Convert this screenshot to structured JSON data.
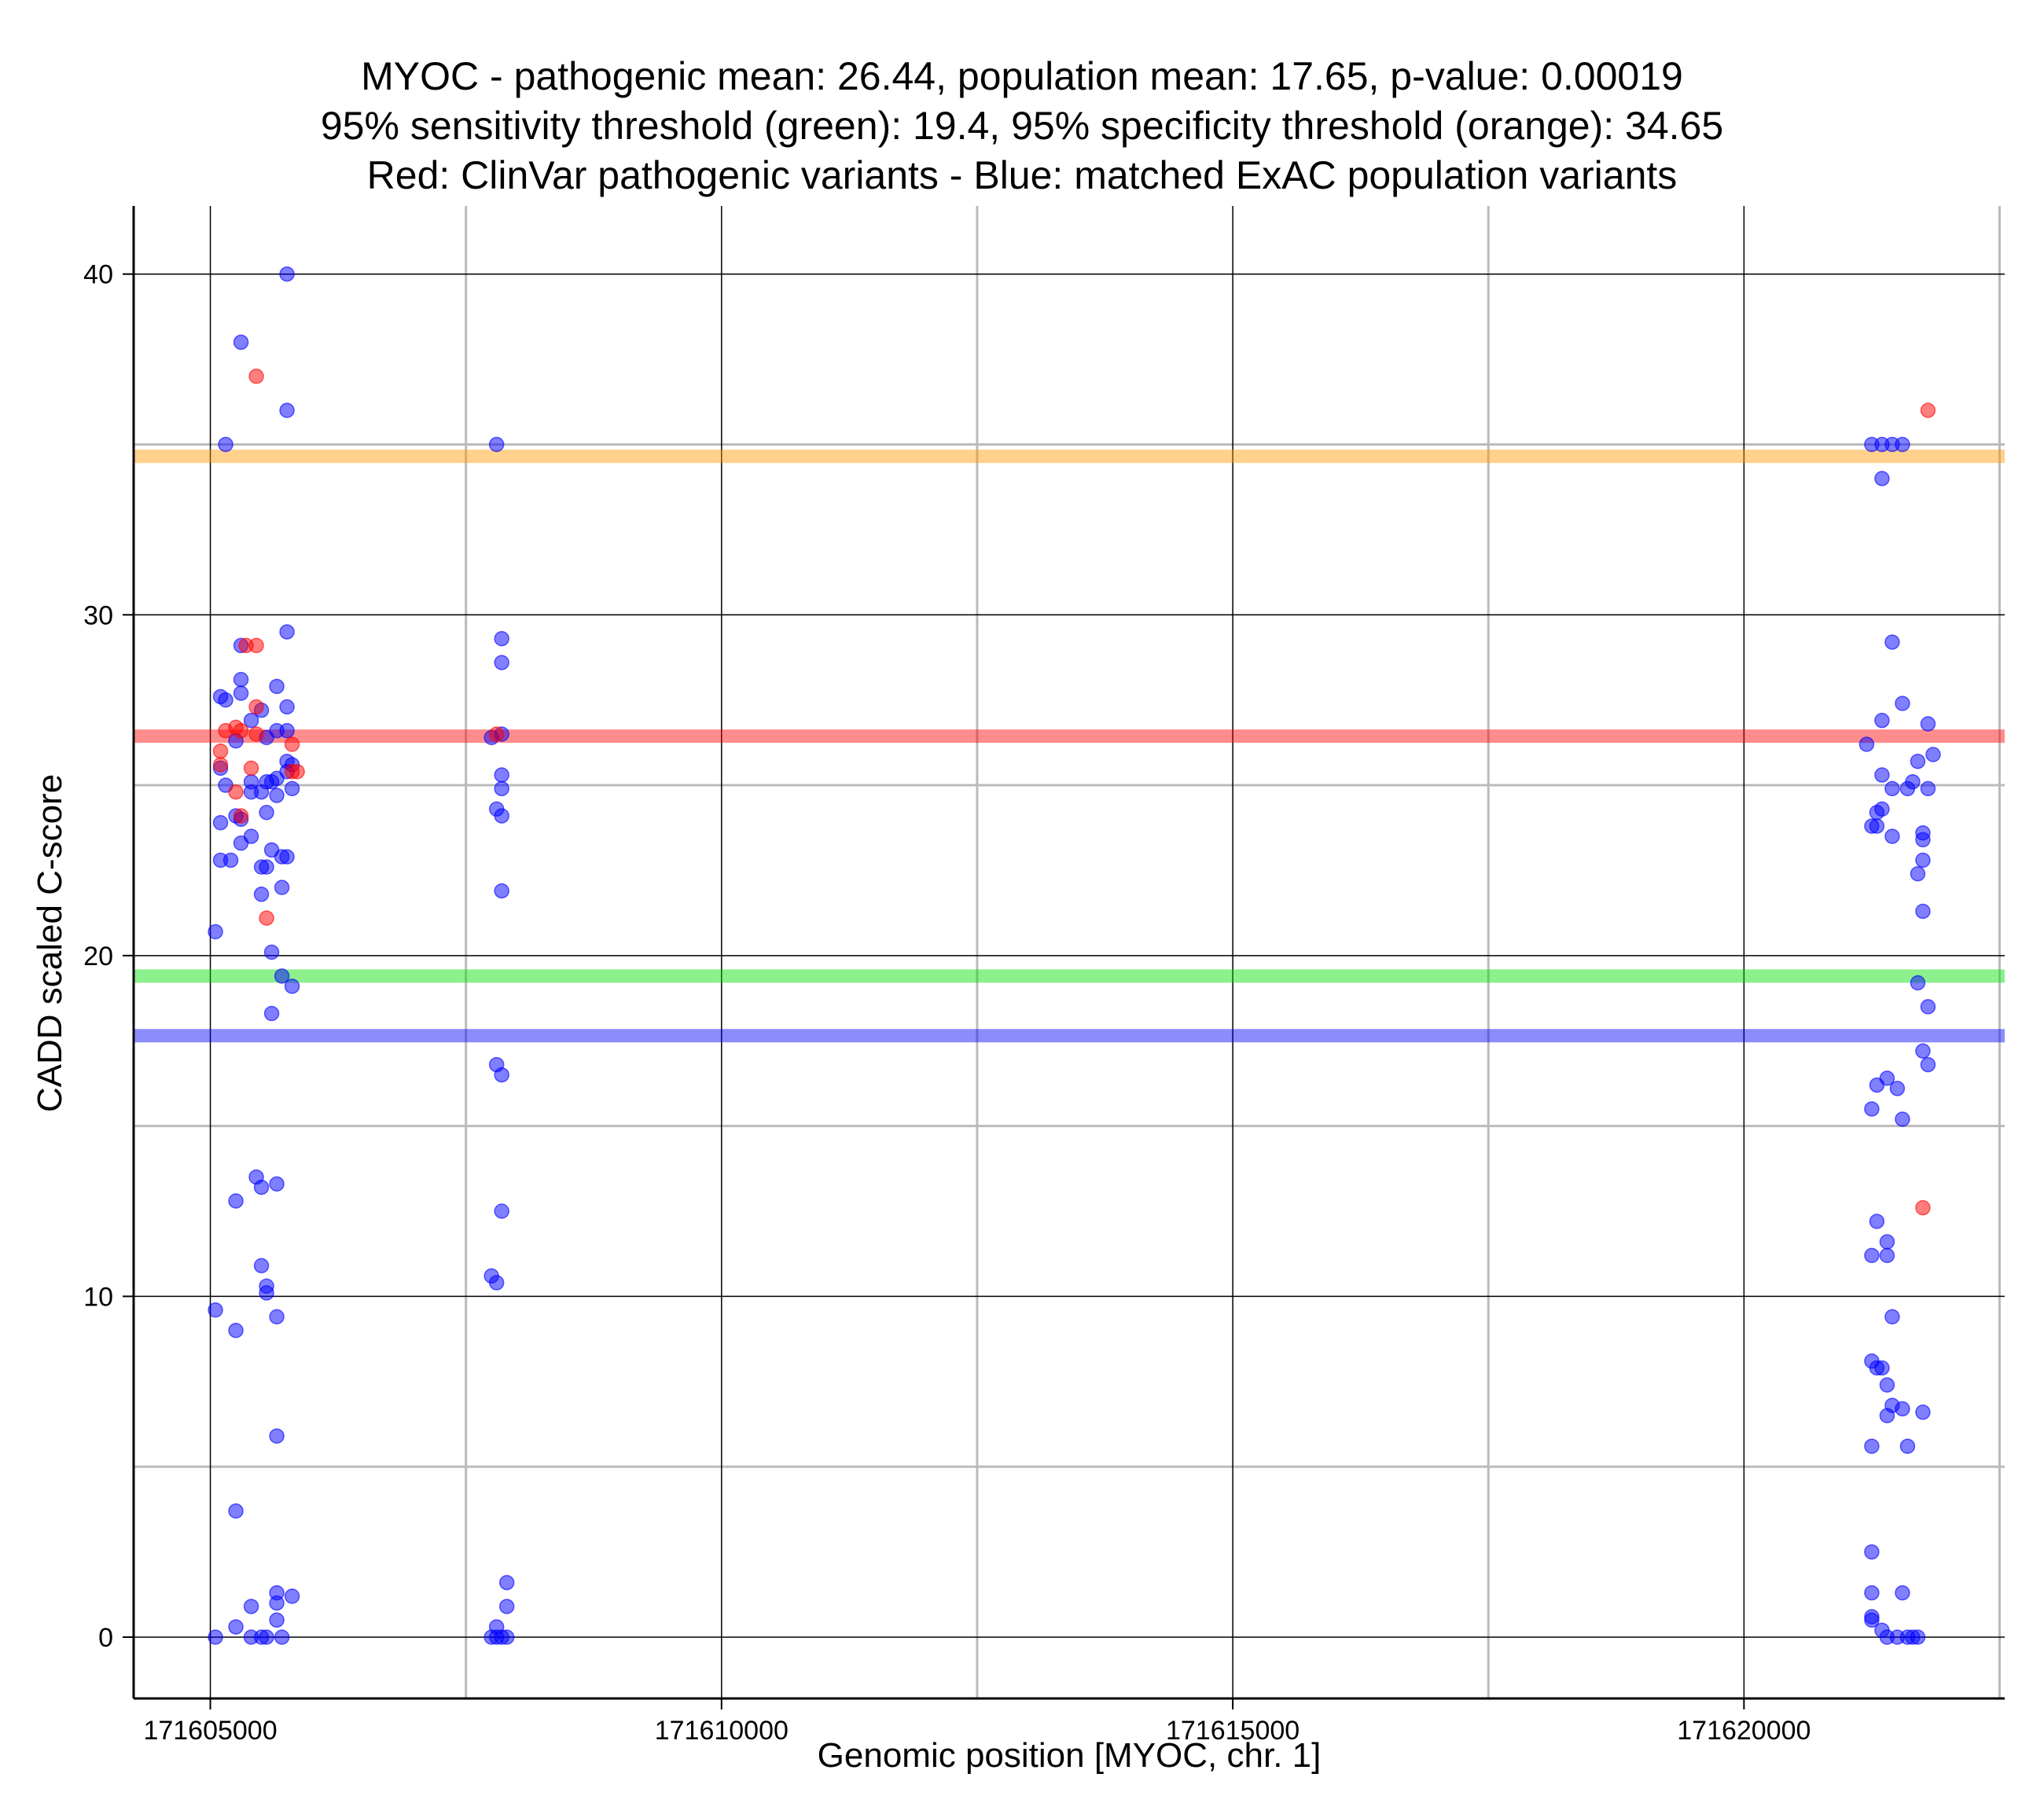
{
  "title_lines": [
    "MYOC - pathogenic mean: 26.44, population mean: 17.65, p-value: 0.00019",
    "95% sensitivity threshold (green): 19.4, 95% specificity threshold (orange): 34.65",
    "Red: ClinVar pathogenic variants - Blue: matched ExAC population variants"
  ],
  "colors": {
    "pathogenic": "#ff0000",
    "population": "#0000ff",
    "sensitivity_threshold": "#66ee55",
    "specificity_threshold": "#ffaa33",
    "grid_major": "#000000",
    "grid_minor": "#bbbbbb"
  },
  "chart_data": {
    "type": "scatter",
    "xlabel": "Genomic position [MYOC, chr. 1]",
    "ylabel": "CADD scaled C-score",
    "xlim": [
      171604250,
      171622550
    ],
    "ylim": [
      -1.8,
      42
    ],
    "xticks": [
      171605000,
      171610000,
      171615000,
      171620000
    ],
    "xtick_labels": [
      "171605000",
      "171610000",
      "171615000",
      "171620000"
    ],
    "x_minor_gridlines": [
      171607500,
      171612500,
      171617500,
      171622500
    ],
    "yticks": [
      0,
      10,
      20,
      30,
      40
    ],
    "ytick_labels": [
      "0",
      "10",
      "20",
      "30",
      "40"
    ],
    "y_minor_gridlines": [
      5,
      15,
      25,
      35
    ],
    "grid": true,
    "reference_lines": [
      {
        "name": "population mean",
        "y": 17.65,
        "color": "#0000ff"
      },
      {
        "name": "95% sensitivity threshold",
        "y": 19.4,
        "color": "#00dd00"
      },
      {
        "name": "pathogenic mean",
        "y": 26.44,
        "color": "#ff0000"
      },
      {
        "name": "95% specificity threshold",
        "y": 34.65,
        "color": "#ff9900"
      }
    ],
    "series": [
      {
        "name": "ExAC population variants",
        "color": "#0000ff",
        "points": [
          [
            171605750,
            40
          ],
          [
            171605300,
            38
          ],
          [
            171605750,
            36
          ],
          [
            171605150,
            35
          ],
          [
            171605750,
            29.5
          ],
          [
            171605300,
            29.1
          ],
          [
            171605300,
            28.1
          ],
          [
            171605650,
            27.9
          ],
          [
            171605300,
            27.7
          ],
          [
            171605100,
            27.6
          ],
          [
            171605150,
            27.5
          ],
          [
            171605750,
            27.3
          ],
          [
            171605500,
            27.2
          ],
          [
            171605400,
            26.9
          ],
          [
            171605650,
            26.6
          ],
          [
            171605750,
            26.6
          ],
          [
            171605250,
            26.3
          ],
          [
            171605550,
            26.4
          ],
          [
            171605750,
            25.7
          ],
          [
            171605800,
            25.6
          ],
          [
            171605100,
            25.5
          ],
          [
            171605750,
            25.4
          ],
          [
            171605650,
            25.2
          ],
          [
            171605600,
            25.1
          ],
          [
            171605550,
            25.1
          ],
          [
            171605150,
            25.0
          ],
          [
            171605400,
            25.1
          ],
          [
            171605800,
            24.9
          ],
          [
            171605400,
            24.8
          ],
          [
            171605650,
            24.7
          ],
          [
            171605500,
            24.8
          ],
          [
            171605550,
            24.2
          ],
          [
            171605250,
            24.1
          ],
          [
            171605100,
            23.9
          ],
          [
            171605300,
            24.0
          ],
          [
            171605400,
            23.5
          ],
          [
            171605300,
            23.3
          ],
          [
            171605600,
            23.1
          ],
          [
            171605700,
            22.9
          ],
          [
            171605750,
            22.9
          ],
          [
            171605200,
            22.8
          ],
          [
            171605100,
            22.8
          ],
          [
            171605500,
            22.6
          ],
          [
            171605550,
            22.6
          ],
          [
            171605700,
            22.0
          ],
          [
            171605500,
            21.8
          ],
          [
            171605050,
            20.7
          ],
          [
            171605600,
            20.1
          ],
          [
            171605700,
            19.4
          ],
          [
            171605800,
            19.1
          ],
          [
            171605600,
            18.3
          ],
          [
            171605450,
            13.5
          ],
          [
            171605650,
            13.3
          ],
          [
            171605500,
            13.2
          ],
          [
            171605250,
            12.8
          ],
          [
            171605500,
            10.9
          ],
          [
            171605550,
            10.3
          ],
          [
            171605550,
            10.1
          ],
          [
            171605050,
            9.6
          ],
          [
            171605650,
            9.4
          ],
          [
            171605250,
            9.0
          ],
          [
            171605650,
            5.9
          ],
          [
            171605250,
            3.7
          ],
          [
            171605650,
            1.3
          ],
          [
            171605800,
            1.2
          ],
          [
            171605650,
            1.0
          ],
          [
            171605400,
            0.9
          ],
          [
            171605250,
            0.3
          ],
          [
            171605650,
            0.5
          ],
          [
            171605050,
            0.0
          ],
          [
            171605400,
            0.0
          ],
          [
            171605500,
            0.0
          ],
          [
            171605550,
            0.0
          ],
          [
            171605700,
            0.0
          ],
          [
            171607800,
            35
          ],
          [
            171607850,
            29.3
          ],
          [
            171607850,
            28.6
          ],
          [
            171607850,
            26.5
          ],
          [
            171607750,
            26.4
          ],
          [
            171607850,
            25.3
          ],
          [
            171607850,
            24.9
          ],
          [
            171607800,
            24.3
          ],
          [
            171607850,
            24.1
          ],
          [
            171607850,
            21.9
          ],
          [
            171607800,
            16.8
          ],
          [
            171607850,
            16.5
          ],
          [
            171607850,
            12.5
          ],
          [
            171607750,
            10.6
          ],
          [
            171607800,
            10.4
          ],
          [
            171607900,
            1.6
          ],
          [
            171607900,
            0.9
          ],
          [
            171607800,
            0.3
          ],
          [
            171607750,
            0.0
          ],
          [
            171607800,
            0.0
          ],
          [
            171607850,
            0.0
          ],
          [
            171607900,
            0.0
          ],
          [
            171621250,
            35
          ],
          [
            171621350,
            35
          ],
          [
            171621450,
            35
          ],
          [
            171621550,
            35
          ],
          [
            171621350,
            34.0
          ],
          [
            171621450,
            29.2
          ],
          [
            171621550,
            27.4
          ],
          [
            171621350,
            26.9
          ],
          [
            171621800,
            26.8
          ],
          [
            171621200,
            26.2
          ],
          [
            171621850,
            25.9
          ],
          [
            171621700,
            25.7
          ],
          [
            171621350,
            25.3
          ],
          [
            171621650,
            25.1
          ],
          [
            171621450,
            24.9
          ],
          [
            171621600,
            24.9
          ],
          [
            171621800,
            24.9
          ],
          [
            171621350,
            24.3
          ],
          [
            171621300,
            24.2
          ],
          [
            171621250,
            23.8
          ],
          [
            171621300,
            23.8
          ],
          [
            171621450,
            23.5
          ],
          [
            171621750,
            23.6
          ],
          [
            171621750,
            23.4
          ],
          [
            171621750,
            22.8
          ],
          [
            171621700,
            22.4
          ],
          [
            171621750,
            21.3
          ],
          [
            171621700,
            19.2
          ],
          [
            171621800,
            18.5
          ],
          [
            171621750,
            17.2
          ],
          [
            171621800,
            16.8
          ],
          [
            171621400,
            16.4
          ],
          [
            171621300,
            16.2
          ],
          [
            171621500,
            16.1
          ],
          [
            171621250,
            15.5
          ],
          [
            171621550,
            15.2
          ],
          [
            171621300,
            12.2
          ],
          [
            171621400,
            11.6
          ],
          [
            171621250,
            11.2
          ],
          [
            171621400,
            11.2
          ],
          [
            171621450,
            9.4
          ],
          [
            171621250,
            8.1
          ],
          [
            171621300,
            7.9
          ],
          [
            171621350,
            7.9
          ],
          [
            171621400,
            7.4
          ],
          [
            171621450,
            6.8
          ],
          [
            171621550,
            6.7
          ],
          [
            171621400,
            6.5
          ],
          [
            171621750,
            6.6
          ],
          [
            171621250,
            5.6
          ],
          [
            171621600,
            5.6
          ],
          [
            171621250,
            2.5
          ],
          [
            171621550,
            1.3
          ],
          [
            171621250,
            1.3
          ],
          [
            171621250,
            0.6
          ],
          [
            171621250,
            0.5
          ],
          [
            171621350,
            0.2
          ],
          [
            171621400,
            0.0
          ],
          [
            171621500,
            0.0
          ],
          [
            171621600,
            0.0
          ],
          [
            171621650,
            0.0
          ],
          [
            171621700,
            0.0
          ]
        ]
      },
      {
        "name": "ClinVar pathogenic variants",
        "color": "#ff0000",
        "points": [
          [
            171605450,
            37
          ],
          [
            171605350,
            29.1
          ],
          [
            171605450,
            29.1
          ],
          [
            171605150,
            26.6
          ],
          [
            171605250,
            26.7
          ],
          [
            171605300,
            26.6
          ],
          [
            171605450,
            26.5
          ],
          [
            171605450,
            27.3
          ],
          [
            171605100,
            26.0
          ],
          [
            171605100,
            25.6
          ],
          [
            171605400,
            25.5
          ],
          [
            171605800,
            26.2
          ],
          [
            171605800,
            25.4
          ],
          [
            171605850,
            25.4
          ],
          [
            171605250,
            24.8
          ],
          [
            171605300,
            24.1
          ],
          [
            171605550,
            21.1
          ],
          [
            171607800,
            26.5
          ],
          [
            171621800,
            36
          ],
          [
            171621750,
            12.6
          ]
        ]
      }
    ]
  }
}
